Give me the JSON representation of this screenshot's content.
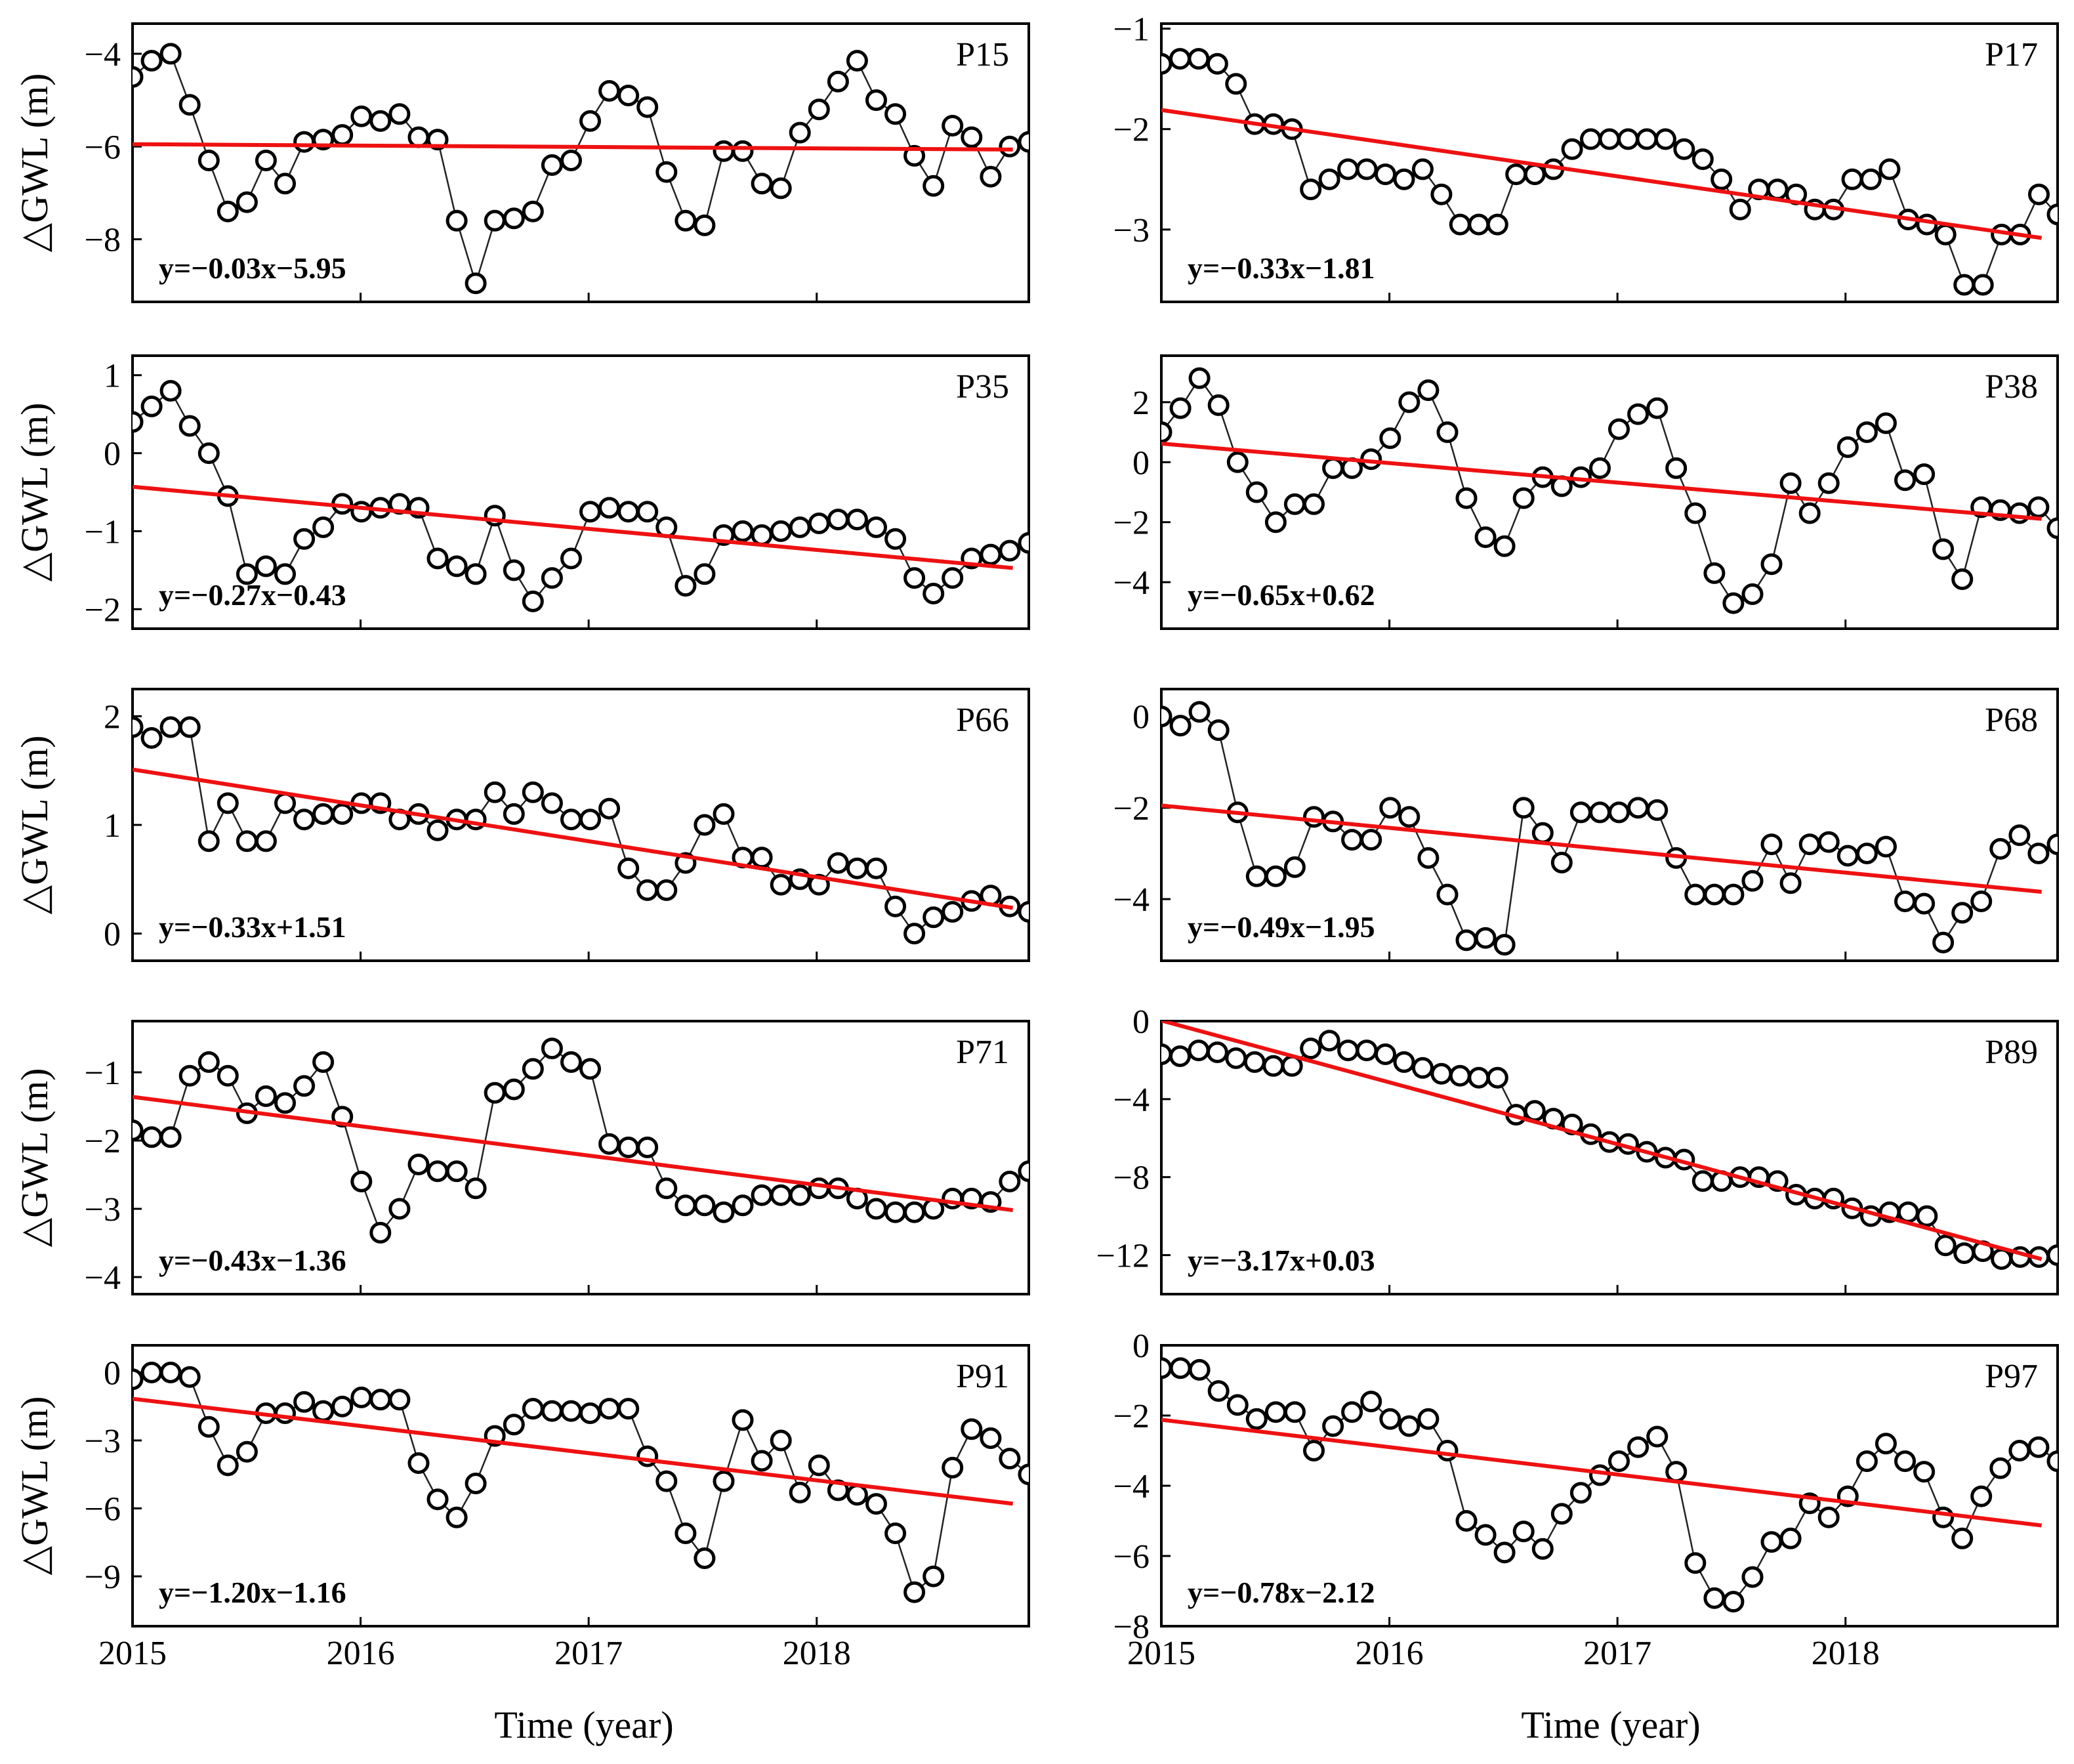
{
  "figure": {
    "x_title": "Time (year)",
    "y_title": "△GWL (m)"
  },
  "chart_data": [
    {
      "type": "line",
      "id": "P15",
      "title": "P15",
      "equation": "y=−0.03x−5.95",
      "xlabel": "",
      "ylabel": "△GWL (m)",
      "xlim": [
        2015,
        2018.93
      ],
      "ylim": [
        -9.35,
        -3.35
      ],
      "xticks": [
        2016,
        2017,
        2018
      ],
      "xtick_labels": [],
      "yticks": [
        -4,
        -6,
        -8
      ],
      "ytick_labels": [
        "−4",
        "−6",
        "−8"
      ],
      "trend": {
        "slope": -0.03,
        "intercept": -5.95
      },
      "series": [
        {
          "name": "P15",
          "values": [
            -4.5,
            -4.15,
            -4.0,
            -5.1,
            -6.3,
            -7.4,
            -7.2,
            -6.3,
            -6.8,
            -5.9,
            -5.85,
            -5.75,
            -5.35,
            -5.45,
            -5.3,
            -5.8,
            -5.85,
            -7.6,
            -8.95,
            -7.6,
            -7.55,
            -7.4,
            -6.4,
            -6.3,
            -5.45,
            -4.8,
            -4.9,
            -5.15,
            -6.55,
            -7.6,
            -7.7,
            -6.1,
            -6.1,
            -6.8,
            -6.9,
            -5.7,
            -5.2,
            -4.6,
            -4.15,
            -5.0,
            -5.3,
            -6.2,
            -6.85,
            -5.55,
            -5.8,
            -6.65,
            -6.0,
            -5.9
          ]
        }
      ]
    },
    {
      "type": "line",
      "id": "P17",
      "title": "P17",
      "equation": "y=−0.33x−1.81",
      "xlabel": "",
      "ylabel": "",
      "xlim": [
        2015,
        2018.93
      ],
      "ylim": [
        -3.72,
        -0.95
      ],
      "xticks": [
        2016,
        2017,
        2018
      ],
      "xtick_labels": [],
      "yticks": [
        -1,
        -2,
        -3
      ],
      "ytick_labels": [
        "−1",
        "−2",
        "−3"
      ],
      "trend": {
        "slope": -0.33,
        "intercept": -1.81
      },
      "series": [
        {
          "name": "P17",
          "values": [
            -1.35,
            -1.3,
            -1.3,
            -1.35,
            -1.55,
            -1.95,
            -1.95,
            -2.0,
            -2.6,
            -2.5,
            -2.4,
            -2.4,
            -2.45,
            -2.5,
            -2.4,
            -2.65,
            -2.95,
            -2.95,
            -2.95,
            -2.45,
            -2.45,
            -2.4,
            -2.2,
            -2.1,
            -2.1,
            -2.1,
            -2.1,
            -2.1,
            -2.2,
            -2.3,
            -2.5,
            -2.8,
            -2.6,
            -2.6,
            -2.65,
            -2.8,
            -2.8,
            -2.5,
            -2.5,
            -2.4,
            -2.9,
            -2.95,
            -3.05,
            -3.55,
            -3.55,
            -3.05,
            -3.05,
            -2.65,
            -2.85
          ]
        }
      ]
    },
    {
      "type": "line",
      "id": "P35",
      "title": "P35",
      "equation": "y=−0.27x−0.43",
      "xlabel": "",
      "ylabel": "△GWL (m)",
      "xlim": [
        2015,
        2018.93
      ],
      "ylim": [
        -2.25,
        1.25
      ],
      "xticks": [
        2016,
        2017,
        2018
      ],
      "xtick_labels": [],
      "yticks": [
        1,
        0,
        -1,
        -2
      ],
      "ytick_labels": [
        "1",
        "0",
        "−1",
        "−2"
      ],
      "trend": {
        "slope": -0.27,
        "intercept": -0.43
      },
      "series": [
        {
          "name": "P35",
          "values": [
            0.4,
            0.6,
            0.8,
            0.35,
            0.0,
            -0.55,
            -1.55,
            -1.45,
            -1.55,
            -1.1,
            -0.95,
            -0.65,
            -0.75,
            -0.7,
            -0.65,
            -0.7,
            -1.35,
            -1.45,
            -1.55,
            -0.8,
            -1.5,
            -1.9,
            -1.6,
            -1.35,
            -0.75,
            -0.7,
            -0.75,
            -0.75,
            -0.95,
            -1.7,
            -1.55,
            -1.05,
            -1.0,
            -1.05,
            -1.0,
            -0.95,
            -0.9,
            -0.85,
            -0.85,
            -0.95,
            -1.1,
            -1.6,
            -1.8,
            -1.6,
            -1.35,
            -1.3,
            -1.25,
            -1.15
          ]
        }
      ]
    },
    {
      "type": "line",
      "id": "P38",
      "title": "P38",
      "equation": "y=−0.65x+0.62",
      "xlabel": "",
      "ylabel": "",
      "xlim": [
        2015,
        2018.93
      ],
      "ylim": [
        -5.55,
        3.55
      ],
      "xticks": [
        2016,
        2017,
        2018
      ],
      "xtick_labels": [],
      "yticks": [
        2,
        0,
        -2,
        -4
      ],
      "ytick_labels": [
        "2",
        "0",
        "−2",
        "−4"
      ],
      "trend": {
        "slope": -0.65,
        "intercept": 0.62
      },
      "series": [
        {
          "name": "P38",
          "values": [
            1.0,
            1.8,
            2.8,
            1.9,
            0.0,
            -1.0,
            -2.0,
            -1.4,
            -1.4,
            -0.2,
            -0.2,
            0.1,
            0.8,
            2.0,
            2.4,
            1.0,
            -1.2,
            -2.5,
            -2.8,
            -1.2,
            -0.5,
            -0.8,
            -0.5,
            -0.2,
            1.1,
            1.6,
            1.8,
            -0.2,
            -1.7,
            -3.7,
            -4.7,
            -4.4,
            -3.4,
            -0.7,
            -1.7,
            -0.7,
            0.5,
            1.0,
            1.3,
            -0.6,
            -0.4,
            -2.9,
            -3.9,
            -1.5,
            -1.6,
            -1.7,
            -1.5,
            -2.2
          ]
        }
      ]
    },
    {
      "type": "line",
      "id": "P66",
      "title": "P66",
      "equation": "y=−0.33x+1.51",
      "xlabel": "",
      "ylabel": "△GWL (m)",
      "xlim": [
        2015,
        2018.93
      ],
      "ylim": [
        -0.25,
        2.25
      ],
      "xticks": [
        2016,
        2017,
        2018
      ],
      "xtick_labels": [],
      "yticks": [
        2,
        1,
        0
      ],
      "ytick_labels": [
        "2",
        "1",
        "0"
      ],
      "trend": {
        "slope": -0.33,
        "intercept": 1.51
      },
      "series": [
        {
          "name": "P66",
          "values": [
            1.9,
            1.8,
            1.9,
            1.9,
            0.85,
            1.2,
            0.85,
            0.85,
            1.2,
            1.05,
            1.1,
            1.1,
            1.2,
            1.2,
            1.05,
            1.1,
            0.95,
            1.05,
            1.05,
            1.3,
            1.1,
            1.3,
            1.2,
            1.05,
            1.05,
            1.15,
            0.6,
            0.4,
            0.4,
            0.65,
            1.0,
            1.1,
            0.7,
            0.7,
            0.45,
            0.5,
            0.45,
            0.65,
            0.6,
            0.6,
            0.25,
            0.0,
            0.15,
            0.2,
            0.3,
            0.35,
            0.25,
            0.2
          ]
        }
      ]
    },
    {
      "type": "line",
      "id": "P68",
      "title": "P68",
      "equation": "y=−0.49x−1.95",
      "xlabel": "",
      "ylabel": "",
      "xlim": [
        2015,
        2018.93
      ],
      "ylim": [
        -5.35,
        0.6
      ],
      "xticks": [
        2016,
        2017,
        2018
      ],
      "xtick_labels": [],
      "yticks": [
        0,
        -2,
        -4
      ],
      "ytick_labels": [
        "0",
        "−2",
        "−4"
      ],
      "trend": {
        "slope": -0.49,
        "intercept": -1.95
      },
      "series": [
        {
          "name": "P68",
          "values": [
            0.0,
            -0.2,
            0.1,
            -0.3,
            -2.1,
            -3.5,
            -3.5,
            -3.3,
            -2.2,
            -2.3,
            -2.7,
            -2.7,
            -2.0,
            -2.2,
            -3.1,
            -3.9,
            -4.9,
            -4.85,
            -5.0,
            -2.0,
            -2.55,
            -3.2,
            -2.1,
            -2.1,
            -2.1,
            -2.0,
            -2.05,
            -3.1,
            -3.9,
            -3.9,
            -3.9,
            -3.6,
            -2.8,
            -3.65,
            -2.8,
            -2.75,
            -3.05,
            -3.0,
            -2.85,
            -4.05,
            -4.1,
            -4.95,
            -4.3,
            -4.05,
            -2.9,
            -2.6,
            -3.0,
            -2.8
          ]
        }
      ]
    },
    {
      "type": "line",
      "id": "P71",
      "title": "P71",
      "equation": "y=−0.43x−1.36",
      "xlabel": "",
      "ylabel": "△GWL (m)",
      "xlim": [
        2015,
        2018.93
      ],
      "ylim": [
        -4.25,
        -0.25
      ],
      "xticks": [
        2016,
        2017,
        2018
      ],
      "xtick_labels": [],
      "yticks": [
        -1,
        -2,
        -3,
        -4
      ],
      "ytick_labels": [
        "−1",
        "−2",
        "−3",
        "−4"
      ],
      "trend": {
        "slope": -0.43,
        "intercept": -1.36
      },
      "series": [
        {
          "name": "P71",
          "values": [
            -1.85,
            -1.95,
            -1.95,
            -1.05,
            -0.85,
            -1.05,
            -1.6,
            -1.35,
            -1.45,
            -1.2,
            -0.85,
            -1.65,
            -2.6,
            -3.35,
            -3.0,
            -2.35,
            -2.45,
            -2.45,
            -2.7,
            -1.3,
            -1.25,
            -0.95,
            -0.65,
            -0.85,
            -0.95,
            -2.05,
            -2.1,
            -2.1,
            -2.7,
            -2.95,
            -2.95,
            -3.05,
            -2.95,
            -2.8,
            -2.8,
            -2.8,
            -2.7,
            -2.7,
            -2.85,
            -3.0,
            -3.05,
            -3.05,
            -3.0,
            -2.85,
            -2.85,
            -2.9,
            -2.6,
            -2.45
          ]
        }
      ]
    },
    {
      "type": "line",
      "id": "P89",
      "title": "P89",
      "equation": "y=−3.17x+0.03",
      "xlabel": "",
      "ylabel": "",
      "xlim": [
        2015,
        2018.93
      ],
      "ylim": [
        -14.0,
        0.0
      ],
      "xticks": [
        2016,
        2017,
        2018
      ],
      "xtick_labels": [],
      "yticks": [
        0,
        -4,
        -8,
        -12
      ],
      "ytick_labels": [
        "0",
        "−4",
        "−8",
        "−12"
      ],
      "trend": {
        "slope": -3.17,
        "intercept": 0.03
      },
      "series": [
        {
          "name": "P89",
          "values": [
            -1.7,
            -1.8,
            -1.5,
            -1.6,
            -1.9,
            -2.1,
            -2.3,
            -2.3,
            -1.4,
            -1.0,
            -1.5,
            -1.5,
            -1.7,
            -2.1,
            -2.4,
            -2.7,
            -2.8,
            -2.9,
            -2.9,
            -4.8,
            -4.6,
            -5.0,
            -5.3,
            -5.8,
            -6.2,
            -6.3,
            -6.7,
            -7.0,
            -7.1,
            -8.2,
            -8.2,
            -8.0,
            -8.0,
            -8.2,
            -8.9,
            -9.1,
            -9.1,
            -9.6,
            -10.0,
            -9.8,
            -9.8,
            -10.0,
            -11.5,
            -11.9,
            -11.8,
            -12.2,
            -12.1,
            -12.1,
            -12.0
          ]
        }
      ]
    },
    {
      "type": "line",
      "id": "P91",
      "title": "P91",
      "equation": "y=−1.20x−1.16",
      "xlabel": "",
      "ylabel": "△GWL (m)",
      "xlim": [
        2015,
        2018.93
      ],
      "ylim": [
        -11.2,
        1.2
      ],
      "xticks": [
        2015,
        2016,
        2017,
        2018
      ],
      "xtick_labels": [
        "2015",
        "2016",
        "2017",
        "2018"
      ],
      "yticks": [
        0,
        -3,
        -6,
        -9
      ],
      "ytick_labels": [
        "0",
        "−3",
        "−6",
        "−9"
      ],
      "trend": {
        "slope": -1.2,
        "intercept": -1.16
      },
      "series": [
        {
          "name": "P91",
          "values": [
            -0.3,
            0.0,
            0.0,
            -0.2,
            -2.4,
            -4.1,
            -3.5,
            -1.8,
            -1.8,
            -1.3,
            -1.7,
            -1.5,
            -1.1,
            -1.2,
            -1.2,
            -4.0,
            -5.6,
            -6.4,
            -4.9,
            -2.8,
            -2.3,
            -1.6,
            -1.7,
            -1.7,
            -1.8,
            -1.6,
            -1.6,
            -3.7,
            -4.8,
            -7.1,
            -8.2,
            -4.8,
            -2.1,
            -3.9,
            -3.0,
            -5.3,
            -4.1,
            -5.2,
            -5.4,
            -5.8,
            -7.1,
            -9.7,
            -9.0,
            -4.2,
            -2.5,
            -2.9,
            -3.8,
            -4.5
          ]
        }
      ]
    },
    {
      "type": "line",
      "id": "P97",
      "title": "P97",
      "equation": "y=−0.78x−2.12",
      "xlabel": "",
      "ylabel": "",
      "xlim": [
        2015,
        2018.93
      ],
      "ylim": [
        -8.0,
        0.0
      ],
      "xticks": [
        2015,
        2016,
        2017,
        2018
      ],
      "xtick_labels": [
        "2015",
        "2016",
        "2017",
        "2018"
      ],
      "yticks": [
        0,
        -2,
        -4,
        -6,
        -8
      ],
      "ytick_labels": [
        "0",
        "−2",
        "−4",
        "−6",
        "−8"
      ],
      "trend": {
        "slope": -0.78,
        "intercept": -2.12
      },
      "series": [
        {
          "name": "P97",
          "values": [
            -0.65,
            -0.65,
            -0.7,
            -1.3,
            -1.7,
            -2.1,
            -1.9,
            -1.9,
            -3.0,
            -2.3,
            -1.9,
            -1.6,
            -2.1,
            -2.3,
            -2.1,
            -3.0,
            -5.0,
            -5.4,
            -5.9,
            -5.3,
            -5.8,
            -4.8,
            -4.2,
            -3.7,
            -3.3,
            -2.9,
            -2.6,
            -3.6,
            -6.2,
            -7.2,
            -7.3,
            -6.6,
            -5.6,
            -5.5,
            -4.5,
            -4.9,
            -4.3,
            -3.3,
            -2.8,
            -3.3,
            -3.6,
            -4.9,
            -5.5,
            -4.3,
            -3.5,
            -3.0,
            -2.9,
            -3.3
          ]
        }
      ]
    }
  ]
}
